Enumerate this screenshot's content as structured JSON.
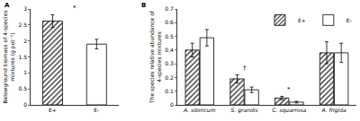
{
  "chart_data": [
    {
      "type": "bar",
      "title": "A",
      "y_label": "Belowground biomass of 4-species\nmixtures (g pot⁻¹)",
      "categories": [
        "E+",
        "E-"
      ],
      "series": [
        {
          "name": "E+",
          "color": "#ffffff",
          "marker": "hatched",
          "values": [
            2.62,
            null
          ],
          "errors": [
            0.2,
            null
          ]
        },
        {
          "name": "E-",
          "color": "#ffffff",
          "marker": "plain",
          "values": [
            null,
            1.9
          ],
          "errors": [
            null,
            0.15
          ]
        }
      ],
      "ylim": [
        0,
        3
      ],
      "yticks": [
        0,
        0.5,
        1,
        1.5,
        2,
        2.5,
        3
      ],
      "legend": "none",
      "annotations": [
        {
          "text": "*"
        }
      ]
    },
    {
      "type": "bar",
      "title": "B",
      "y_label": "The species relative abundance of\n4-species mixtures",
      "categories": [
        "A. sibiricum",
        "S. grandis",
        "C. squarrosa",
        "A. frigida"
      ],
      "series": [
        {
          "name": "E+",
          "color": "#ffffff",
          "marker": "hatched",
          "values": [
            0.4,
            0.19,
            0.05,
            0.38
          ],
          "errors": [
            0.05,
            0.03,
            0.012,
            0.08
          ]
        },
        {
          "name": "E-",
          "color": "#ffffff",
          "marker": "plain",
          "values": [
            0.49,
            0.11,
            0.02,
            0.38
          ],
          "errors": [
            0.06,
            0.02,
            0.006,
            0.07
          ]
        }
      ],
      "ylim": [
        0,
        0.7
      ],
      "yticks": [
        0,
        0.1,
        0.2,
        0.3,
        0.4,
        0.5,
        0.6,
        0.7
      ],
      "legend": "upper right",
      "annotations": [
        {
          "text": "†",
          "category": "S. grandis"
        },
        {
          "text": "*",
          "category": "C. squarrosa"
        }
      ]
    }
  ]
}
